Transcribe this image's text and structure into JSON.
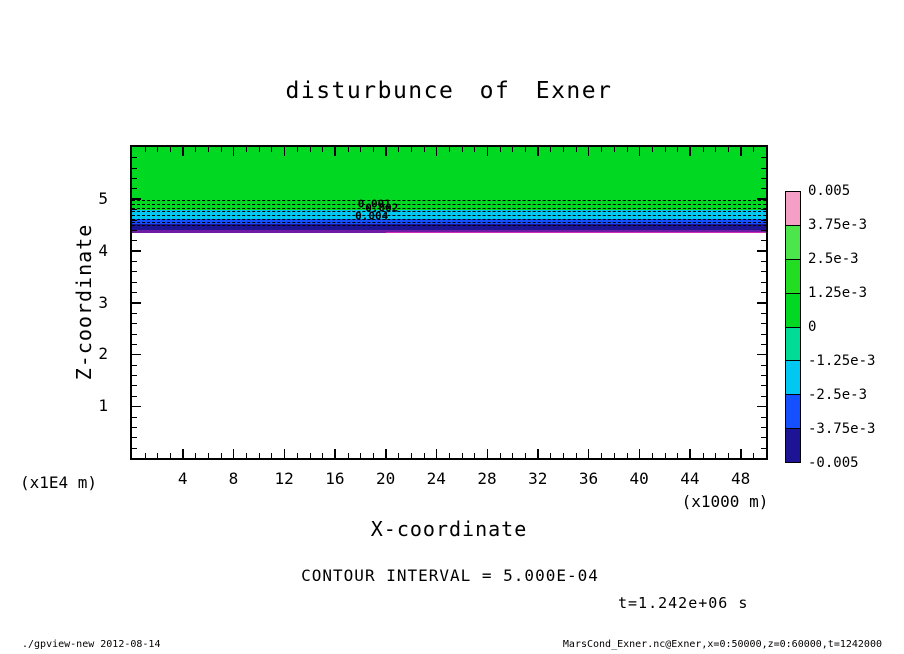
{
  "title": "disturbunce of Exner",
  "caption": "CONTOUR INTERVAL = 5.000E-04",
  "time_label": "t=1.242e+06 s",
  "footer": {
    "left": "./gpview-new  2012-08-14",
    "right": "MarsCond_Exner.nc@Exner,x=0:50000,z=0:60000,t=1242000"
  },
  "chart_data": {
    "type": "heatmap",
    "title": "disturbunce of Exner",
    "xlabel": "X-coordinate",
    "ylabel": "Z-coordinate",
    "x_unit": "(x1000 m)",
    "y_unit": "(x1E4 m)",
    "xlim": [
      0,
      50
    ],
    "ylim": [
      0,
      6
    ],
    "x_major_ticks": [
      4,
      8,
      12,
      16,
      20,
      24,
      28,
      32,
      36,
      40,
      44,
      48
    ],
    "x_minor_step": 1,
    "y_major_ticks": [
      1,
      2,
      3,
      4,
      5
    ],
    "y_minor_step": 0.2,
    "grid": false,
    "contour_interval": 0.0005,
    "legend_position": "right",
    "bands": [
      {
        "from": 4.78,
        "to": 6.0,
        "color": "#00d822"
      },
      {
        "from": 4.62,
        "to": 4.78,
        "color": "#00c8f0"
      },
      {
        "from": 4.52,
        "to": 4.62,
        "color": "#1450ff"
      },
      {
        "from": 4.39,
        "to": 4.52,
        "color": "#1c1494"
      },
      {
        "from": 4.35,
        "to": 4.39,
        "color": "#6d1ba5"
      }
    ],
    "contours": {
      "color": "#000000",
      "dashed_z": [
        4.97,
        4.9,
        4.83,
        4.76,
        4.69,
        4.62,
        4.55,
        4.49
      ],
      "extra_lines": [
        {
          "z": 4.36,
          "x_from": 20,
          "x_to": 50,
          "color": "#cf2ab8"
        }
      ]
    },
    "contour_labels": [
      {
        "text": "0.001",
        "x": 17.8,
        "z": 4.9
      },
      {
        "text": "0.002",
        "x": 18.4,
        "z": 4.82
      },
      {
        "text": "0.004",
        "x": 17.6,
        "z": 4.66
      }
    ],
    "colorbar": {
      "labels": [
        "0.005",
        "3.75e-3",
        "2.5e-3",
        "1.25e-3",
        "0",
        "-1.25e-3",
        "-2.5e-3",
        "-3.75e-3",
        "-0.005"
      ],
      "segment_colors": [
        "#f59fc6",
        "#4ce64c",
        "#22dd22",
        "#00d822",
        "#00dc96",
        "#00c8f0",
        "#1450ff",
        "#1c1494"
      ]
    }
  }
}
